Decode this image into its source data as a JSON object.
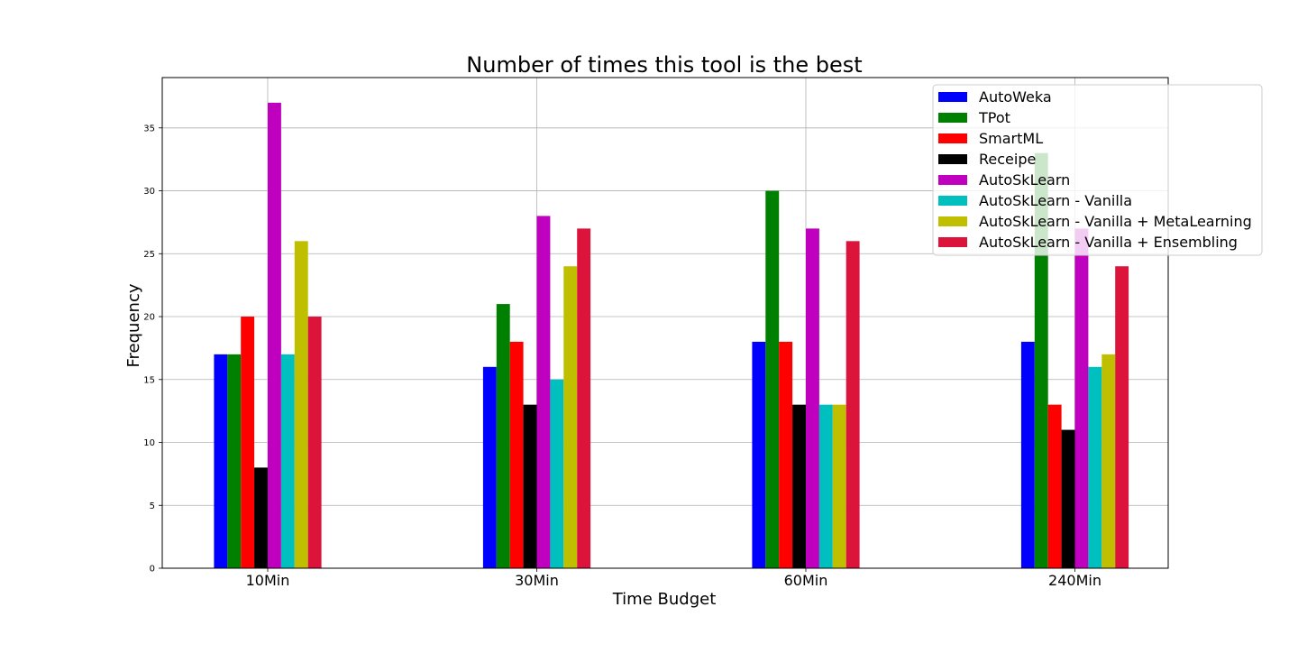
{
  "chart_data": {
    "type": "bar",
    "title": "Number of times this tool is the best",
    "xlabel": "Time Budget",
    "ylabel": "Frequency",
    "categories": [
      "10Min",
      "30Min",
      "60Min",
      "240Min"
    ],
    "ylim": [
      0,
      39
    ],
    "yticks": [
      0,
      5,
      10,
      15,
      20,
      25,
      30,
      35
    ],
    "grid": true,
    "legend_position": "top-right",
    "series": [
      {
        "name": "AutoWeka",
        "color": "#0000ff",
        "values": [
          17,
          16,
          18,
          18
        ]
      },
      {
        "name": "TPot",
        "color": "#008000",
        "values": [
          17,
          21,
          30,
          33
        ]
      },
      {
        "name": "SmartML",
        "color": "#ff0000",
        "values": [
          20,
          18,
          18,
          13
        ]
      },
      {
        "name": "Receipe",
        "color": "#000000",
        "values": [
          8,
          13,
          13,
          11
        ]
      },
      {
        "name": "AutoSkLearn",
        "color": "#bf00bf",
        "values": [
          37,
          28,
          27,
          27
        ]
      },
      {
        "name": "AutoSkLearn - Vanilla",
        "color": "#00bfbf",
        "values": [
          17,
          15,
          13,
          16
        ]
      },
      {
        "name": "AutoSkLearn - Vanilla + MetaLearning",
        "color": "#bfbf00",
        "values": [
          26,
          24,
          13,
          17
        ]
      },
      {
        "name": "AutoSkLearn - Vanilla + Ensembling",
        "color": "#dc143c",
        "values": [
          20,
          27,
          26,
          24
        ]
      }
    ]
  }
}
